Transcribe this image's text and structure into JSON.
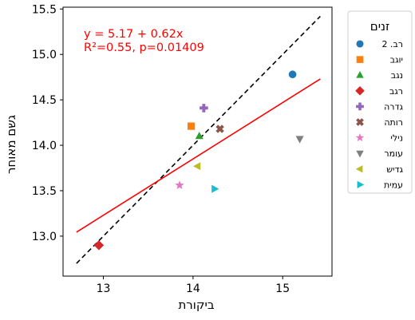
{
  "chart_data": {
    "type": "scatter",
    "xlabel": "ביקורת",
    "ylabel": "גשם מאוחר",
    "xlim": [
      12.55,
      15.55
    ],
    "ylim": [
      12.56,
      15.52
    ],
    "xticks": [
      13,
      14,
      15
    ],
    "yticks": [
      13.0,
      13.5,
      14.0,
      14.5,
      15.0,
      15.5
    ],
    "ytick_labels": [
      "13.0",
      "13.5",
      "14.0",
      "14.5",
      "15.0",
      "15.5"
    ],
    "grid": false,
    "annotation": {
      "line1": "y = 5.17 + 0.62x",
      "line2": "R²=0.55, p=0.01409",
      "color": "#ff0000"
    },
    "fit_line": {
      "intercept": 5.17,
      "slope": 0.62,
      "x_range": [
        12.7,
        15.42
      ],
      "color": "#ff0000"
    },
    "identity_line": {
      "x_range": [
        12.7,
        15.42
      ],
      "color": "#000000",
      "style": "dashed"
    },
    "legend": {
      "title": "זנים",
      "placement": "outside-right"
    },
    "points": [
      {
        "name": "רב. 2",
        "x": 15.11,
        "y": 14.78,
        "marker": "circle",
        "color": "#1f77b4"
      },
      {
        "name": "יוגב",
        "x": 13.98,
        "y": 14.21,
        "marker": "square",
        "color": "#ff7f0e"
      },
      {
        "name": "נגב",
        "x": 14.07,
        "y": 14.1,
        "marker": "triangle-up",
        "color": "#2ca02c"
      },
      {
        "name": "רגב",
        "x": 12.95,
        "y": 12.9,
        "marker": "diamond",
        "color": "#d62728"
      },
      {
        "name": "גדרה",
        "x": 14.12,
        "y": 14.41,
        "marker": "plus",
        "color": "#9467bd"
      },
      {
        "name": "רותה",
        "x": 14.3,
        "y": 14.18,
        "marker": "x",
        "color": "#8c564b"
      },
      {
        "name": "נילי",
        "x": 13.85,
        "y": 13.56,
        "marker": "star",
        "color": "#e377c2"
      },
      {
        "name": "עומר",
        "x": 15.19,
        "y": 14.07,
        "marker": "triangle-down",
        "color": "#7f7f7f"
      },
      {
        "name": "גדיש",
        "x": 14.05,
        "y": 13.77,
        "marker": "triangle-left",
        "color": "#bcbd22"
      },
      {
        "name": "עמית",
        "x": 14.24,
        "y": 13.52,
        "marker": "triangle-right",
        "color": "#17becf"
      }
    ]
  }
}
